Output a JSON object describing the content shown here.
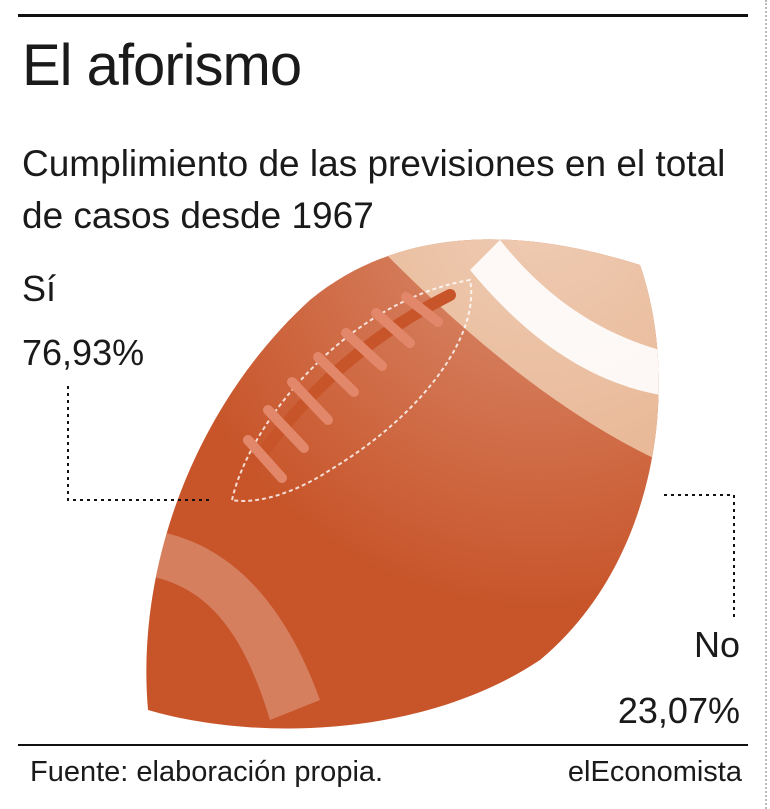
{
  "title": "El aforismo",
  "subtitle": "Cumplimiento de las previsiones en el total de casos desde 1967",
  "chart_data": {
    "type": "pie",
    "slices": [
      {
        "label": "Sí",
        "value": 76.93,
        "display": "76,93%"
      },
      {
        "label": "No",
        "value": 23.07,
        "display": "23,07%"
      }
    ],
    "colors": {
      "si": "#c8552a",
      "no": "#e8b590",
      "stripe": "#ffffff",
      "laces": "#e2876a"
    }
  },
  "footer": {
    "source": "Fuente: elaboración propia.",
    "brand": "elEconomista"
  }
}
